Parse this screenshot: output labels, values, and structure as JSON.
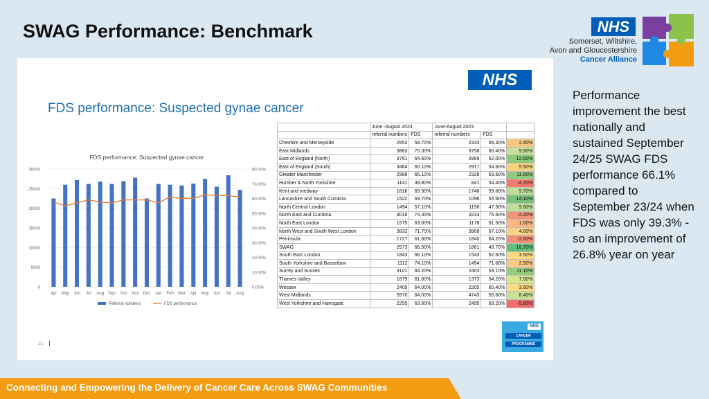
{
  "page_title": "SWAG Performance: Benchmark",
  "org": {
    "line1": "Somerset, Wiltshire,",
    "line2": "Avon and Gloucestershire",
    "line3": "Cancer Alliance",
    "nhs_logo": "NHS"
  },
  "slide": {
    "title": "FDS performance: Suspected gynae cancer",
    "nhs_logo": "NHS",
    "page_number": "21",
    "programme_logo": {
      "nhs": "NHS",
      "line1": "CANCER",
      "line2": "PROGRAMME"
    }
  },
  "chart_data": {
    "type": "bar",
    "title": "FDS performance: Suspected gynae cancer",
    "categories": [
      "Apr",
      "May",
      "Jun",
      "Jul",
      "Aug",
      "Sep",
      "Oct",
      "Nov",
      "Dec",
      "Jan",
      "Feb",
      "Mar",
      "Apr",
      "May",
      "Jun",
      "Jul",
      "Aug"
    ],
    "series": [
      {
        "name": "Referral numbers",
        "type": "bar",
        "axis": "left",
        "values": [
          22500,
          26000,
          27200,
          26200,
          26800,
          26200,
          26900,
          27800,
          22500,
          26200,
          26000,
          25800,
          26300,
          27500,
          25500,
          28400,
          24700
        ]
      },
      {
        "name": "FDS performance",
        "type": "line",
        "axis": "right",
        "values": [
          0.575,
          0.55,
          0.57,
          0.59,
          0.575,
          0.57,
          0.59,
          0.59,
          0.59,
          0.57,
          0.61,
          0.6,
          0.6,
          0.625,
          0.62,
          0.62,
          0.61
        ]
      }
    ],
    "y_left_ticks": [
      "30000",
      "25000",
      "20000",
      "15000",
      "10000",
      "5000",
      "0"
    ],
    "y_right_ticks": [
      "80.00%",
      "70.00%",
      "60.00%",
      "50.00%",
      "40.00%",
      "30.00%",
      "20.00%",
      "10.00%",
      "0.00%"
    ],
    "ylim_left": [
      0,
      30000
    ],
    "ylim_right": [
      0,
      0.8
    ],
    "legend": [
      "Referral numbers",
      "FDS performance"
    ],
    "colors": {
      "bar": "#4472c4",
      "line": "#ed7d31"
    }
  },
  "table": {
    "period1": "June -August 2024",
    "period2": "June-August 2023",
    "col_referral": "referral numbers",
    "col_fds": "FDS",
    "rows": [
      [
        "Cheshire and Merseyside",
        "2953",
        "58.70%",
        "2333",
        "56.30%",
        "2.40%"
      ],
      [
        "East Midlands",
        "3863",
        "70.30%",
        "3758",
        "60.40%",
        "9.90%"
      ],
      [
        "East of England (North)",
        "3761",
        "64.60%",
        "2869",
        "52.00%",
        "12.60%"
      ],
      [
        "East of England (South)",
        "3464",
        "60.10%",
        "2917",
        "54.60%",
        "5.50%"
      ],
      [
        "Greater Manchester",
        "2988",
        "65.10%",
        "2328",
        "53.60%",
        "11.60%"
      ],
      [
        "Humber & North Yorkshire",
        "1141",
        "49.80%",
        "841",
        "54.40%",
        "-4.70%"
      ],
      [
        "Kent and medway",
        "1816",
        "69.30%",
        "1746",
        "59.60%",
        "9.70%"
      ],
      [
        "Lancashire and South Cumbria",
        "1522",
        "69.70%",
        "1096",
        "55.60%",
        "14.10%"
      ],
      [
        "North Central London",
        "1494",
        "57.10%",
        "1158",
        "47.50%",
        "9.60%"
      ],
      [
        "North East and Cumbria",
        "3016",
        "74.30%",
        "3233",
        "76.60%",
        "-2.20%"
      ],
      [
        "North East London",
        "1575",
        "63.00%",
        "1178",
        "61.50%",
        "1.60%"
      ],
      [
        "North West and South West London",
        "3832",
        "71.70%",
        "3908",
        "67.10%",
        "4.60%"
      ],
      [
        "Peninsula",
        "1727",
        "61.60%",
        "1840",
        "64.20%",
        "-2.60%"
      ],
      [
        "SWAG",
        "2573",
        "66.50%",
        "1861",
        "49.70%",
        "16.70%"
      ],
      [
        "South East London",
        "1843",
        "66.10%",
        "1543",
        "62.60%",
        "3.50%"
      ],
      [
        "South Yorkshire and Bassetlaw",
        "1112",
        "74.10%",
        "1454",
        "71.60%",
        "2.50%"
      ],
      [
        "Surrey and Sussex",
        "3101",
        "64.20%",
        "2403",
        "53.10%",
        "11.10%"
      ],
      [
        "Thames Valley",
        "1879",
        "61.80%",
        "1373",
        "54.20%",
        "7.60%"
      ],
      [
        "Wessex",
        "2409",
        "64.00%",
        "2205",
        "60.40%",
        "3.60%"
      ],
      [
        "West Midlands",
        "5570",
        "64.00%",
        "4743",
        "55.60%",
        "8.40%"
      ],
      [
        "West Yorkshire and Harrogate",
        "2255",
        "63.60%",
        "2495",
        "69.20%",
        "-5.60%"
      ]
    ],
    "diff_colors": [
      "#f7c77e",
      "#c6e09a",
      "#8cc97a",
      "#f6d27d",
      "#8fcb7c",
      "#f07b6f",
      "#bfdf97",
      "#78c27a",
      "#c0df98",
      "#f29478",
      "#fbb681",
      "#f7d482",
      "#f29078",
      "#63be7b",
      "#fbda84",
      "#fbc983",
      "#95cc7d",
      "#d6e78e",
      "#fbda84",
      "#c7e195",
      "#f26d6e"
    ]
  },
  "side_text": "Performance improvement the best nationally and sustained September 24/25 SWAG FDS performance 66.1% compared to September 23/24 when FDS was only 39.3% - so an improvement of 26.8% year on year",
  "footer": "Connecting and Empowering the Delivery of Cancer Care Across SWAG Communities"
}
